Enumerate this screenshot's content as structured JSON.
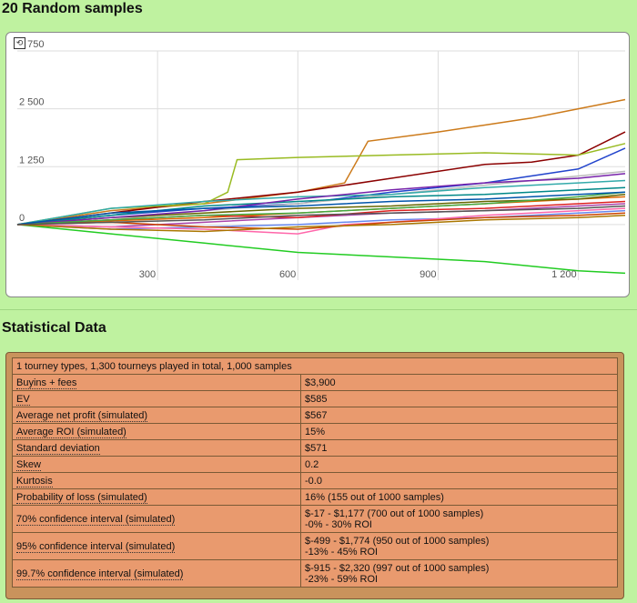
{
  "chart_title": "20 Random samples",
  "stats_title": "Statistical Data",
  "stats_header": "1 tourney types, 1,300 tourneys played in total, 1,000 samples",
  "stats_rows": [
    {
      "label": "Buyins + fees",
      "value": "$3,900",
      "value2": ""
    },
    {
      "label": "EV",
      "value": "$585",
      "value2": ""
    },
    {
      "label": "Average net profit (simulated)",
      "value": "$567",
      "value2": ""
    },
    {
      "label": "Average ROI (simulated)",
      "value": "15%",
      "value2": ""
    },
    {
      "label": "Standard deviation",
      "value": "$571",
      "value2": ""
    },
    {
      "label": "Skew",
      "value": "0.2",
      "value2": ""
    },
    {
      "label": "Kurtosis",
      "value": "-0.0",
      "value2": ""
    },
    {
      "label": "Probability of loss (simulated)",
      "value": "16% (155 out of 1000 samples)",
      "value2": ""
    },
    {
      "label": "70% confidence interval (simulated)",
      "value": "$-17 - $1,177 (700 out of 1000 samples)",
      "value2": "-0% - 30% ROI"
    },
    {
      "label": "95% confidence interval (simulated)",
      "value": "$-499 - $1,774 (950 out of 1000 samples)",
      "value2": "-13% - 45% ROI"
    },
    {
      "label": "99.7% confidence interval (simulated)",
      "value": "$-915 - $2,320 (997 out of 1000 samples)",
      "value2": "-23% - 59% ROI"
    }
  ],
  "chart_data": {
    "type": "line",
    "title": "20 Random samples",
    "xlabel": "",
    "ylabel": "",
    "xlim": [
      0,
      1300
    ],
    "ylim": [
      -1200,
      3750
    ],
    "x_ticks": [
      300,
      600,
      900,
      1200
    ],
    "x_tick_labels": [
      "300",
      "600",
      "900",
      "1 200"
    ],
    "y_ticks": [
      0,
      1250,
      2500,
      3750
    ],
    "y_tick_labels": [
      "0",
      "1 250",
      "2 500",
      "3 750"
    ],
    "grid": true,
    "legend": "none",
    "series": [
      {
        "color": "#cc7a1a",
        "points": [
          [
            0,
            0
          ],
          [
            200,
            300
          ],
          [
            400,
            450
          ],
          [
            600,
            700
          ],
          [
            700,
            900
          ],
          [
            750,
            1800
          ],
          [
            900,
            2000
          ],
          [
            1000,
            2150
          ],
          [
            1100,
            2300
          ],
          [
            1200,
            2500
          ],
          [
            1300,
            2700
          ]
        ]
      },
      {
        "color": "#8b0000",
        "points": [
          [
            0,
            0
          ],
          [
            200,
            250
          ],
          [
            400,
            500
          ],
          [
            600,
            700
          ],
          [
            800,
            1000
          ],
          [
            1000,
            1300
          ],
          [
            1100,
            1350
          ],
          [
            1200,
            1500
          ],
          [
            1300,
            2000
          ]
        ]
      },
      {
        "color": "#99bb22",
        "points": [
          [
            0,
            0
          ],
          [
            200,
            350
          ],
          [
            400,
            450
          ],
          [
            450,
            700
          ],
          [
            470,
            1400
          ],
          [
            600,
            1450
          ],
          [
            800,
            1500
          ],
          [
            1000,
            1550
          ],
          [
            1200,
            1500
          ],
          [
            1300,
            1750
          ]
        ]
      },
      {
        "color": "#2244cc",
        "points": [
          [
            0,
            0
          ],
          [
            200,
            200
          ],
          [
            400,
            350
          ],
          [
            600,
            450
          ],
          [
            800,
            700
          ],
          [
            1000,
            900
          ],
          [
            1200,
            1200
          ],
          [
            1300,
            1650
          ]
        ]
      },
      {
        "color": "#22cc22",
        "points": [
          [
            0,
            0
          ],
          [
            200,
            -200
          ],
          [
            400,
            -400
          ],
          [
            600,
            -600
          ],
          [
            800,
            -700
          ],
          [
            1000,
            -800
          ],
          [
            1200,
            -1000
          ],
          [
            1300,
            -1050
          ]
        ]
      },
      {
        "color": "#bbbbbb",
        "points": [
          [
            0,
            0
          ],
          [
            200,
            100
          ],
          [
            400,
            300
          ],
          [
            600,
            450
          ],
          [
            800,
            650
          ],
          [
            1000,
            850
          ],
          [
            1200,
            1050
          ],
          [
            1300,
            1150
          ]
        ]
      },
      {
        "color": "#dd6600",
        "points": [
          [
            0,
            0
          ],
          [
            200,
            80
          ],
          [
            400,
            150
          ],
          [
            600,
            250
          ],
          [
            800,
            350
          ],
          [
            1000,
            450
          ],
          [
            1200,
            550
          ],
          [
            1300,
            600
          ]
        ]
      },
      {
        "color": "#aa44aa",
        "points": [
          [
            0,
            0
          ],
          [
            200,
            -50
          ],
          [
            400,
            50
          ],
          [
            600,
            150
          ],
          [
            800,
            250
          ],
          [
            1000,
            300
          ],
          [
            1200,
            400
          ],
          [
            1300,
            450
          ]
        ]
      },
      {
        "color": "#33aaaa",
        "points": [
          [
            0,
            0
          ],
          [
            200,
            350
          ],
          [
            400,
            500
          ],
          [
            600,
            600
          ],
          [
            800,
            650
          ],
          [
            1000,
            800
          ],
          [
            1200,
            900
          ],
          [
            1300,
            950
          ]
        ]
      },
      {
        "color": "#dd2222",
        "points": [
          [
            0,
            0
          ],
          [
            200,
            100
          ],
          [
            400,
            200
          ],
          [
            600,
            150
          ],
          [
            800,
            300
          ],
          [
            1000,
            350
          ],
          [
            1200,
            450
          ],
          [
            1300,
            500
          ]
        ]
      },
      {
        "color": "#666600",
        "points": [
          [
            0,
            0
          ],
          [
            200,
            150
          ],
          [
            400,
            250
          ],
          [
            600,
            350
          ],
          [
            800,
            400
          ],
          [
            1000,
            500
          ],
          [
            1200,
            550
          ],
          [
            1300,
            650
          ]
        ]
      },
      {
        "color": "#6688ee",
        "points": [
          [
            0,
            0
          ],
          [
            200,
            -100
          ],
          [
            400,
            -50
          ],
          [
            600,
            0
          ],
          [
            800,
            100
          ],
          [
            1000,
            150
          ],
          [
            1200,
            250
          ],
          [
            1300,
            300
          ]
        ]
      },
      {
        "color": "#ff66aa",
        "points": [
          [
            0,
            0
          ],
          [
            200,
            -50
          ],
          [
            400,
            -100
          ],
          [
            600,
            -200
          ],
          [
            700,
            0
          ],
          [
            800,
            50
          ],
          [
            1000,
            200
          ],
          [
            1300,
            350
          ]
        ]
      },
      {
        "color": "#008888",
        "points": [
          [
            0,
            0
          ],
          [
            200,
            200
          ],
          [
            400,
            400
          ],
          [
            600,
            500
          ],
          [
            800,
            600
          ],
          [
            1000,
            650
          ],
          [
            1200,
            750
          ],
          [
            1300,
            800
          ]
        ]
      },
      {
        "color": "#7722aa",
        "points": [
          [
            0,
            0
          ],
          [
            200,
            150
          ],
          [
            400,
            300
          ],
          [
            600,
            550
          ],
          [
            800,
            750
          ],
          [
            1000,
            900
          ],
          [
            1200,
            1000
          ],
          [
            1300,
            1100
          ]
        ]
      },
      {
        "color": "#cc4400",
        "points": [
          [
            0,
            0
          ],
          [
            200,
            50
          ],
          [
            400,
            -50
          ],
          [
            600,
            -100
          ],
          [
            800,
            50
          ],
          [
            1000,
            150
          ],
          [
            1200,
            200
          ],
          [
            1300,
            250
          ]
        ]
      },
      {
        "color": "#44aa44",
        "points": [
          [
            0,
            0
          ],
          [
            200,
            100
          ],
          [
            400,
            200
          ],
          [
            600,
            250
          ],
          [
            800,
            350
          ],
          [
            1000,
            450
          ],
          [
            1200,
            600
          ],
          [
            1300,
            700
          ]
        ]
      },
      {
        "color": "#aa7700",
        "points": [
          [
            0,
            0
          ],
          [
            200,
            -100
          ],
          [
            400,
            -150
          ],
          [
            600,
            -50
          ],
          [
            800,
            0
          ],
          [
            1000,
            100
          ],
          [
            1200,
            150
          ],
          [
            1300,
            200
          ]
        ]
      },
      {
        "color": "#0055aa",
        "points": [
          [
            0,
            0
          ],
          [
            200,
            250
          ],
          [
            400,
            350
          ],
          [
            600,
            400
          ],
          [
            800,
            500
          ],
          [
            1000,
            550
          ],
          [
            1200,
            650
          ],
          [
            1300,
            700
          ]
        ]
      },
      {
        "color": "#555555",
        "points": [
          [
            0,
            0
          ],
          [
            200,
            50
          ],
          [
            400,
            100
          ],
          [
            600,
            200
          ],
          [
            800,
            250
          ],
          [
            1000,
            300
          ],
          [
            1200,
            350
          ],
          [
            1300,
            400
          ]
        ]
      }
    ]
  }
}
